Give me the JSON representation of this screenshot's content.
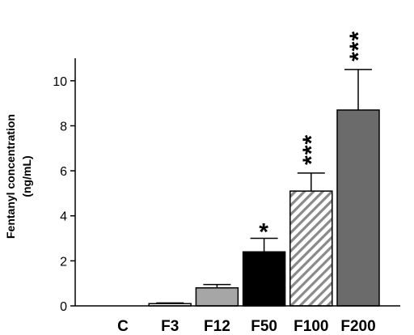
{
  "chart_data": {
    "type": "bar",
    "title": "",
    "xlabel": "",
    "ylabel": "Fentanyl concentration",
    "ylabel_unit": "(ng/mL)",
    "ylim": [
      0,
      11
    ],
    "yticks": [
      0,
      2,
      4,
      6,
      8,
      10
    ],
    "grid": false,
    "categories": [
      "C",
      "F3",
      "F12",
      "F50",
      "F100",
      "F200"
    ],
    "values": [
      0,
      0.1,
      0.8,
      2.4,
      5.1,
      8.7
    ],
    "errors": [
      0,
      0.03,
      0.15,
      0.6,
      0.8,
      1.8
    ],
    "significance": [
      "",
      "",
      "",
      "*",
      "***",
      "***"
    ],
    "bar_fills": [
      "none",
      "#ffffff",
      "#a6a6a6",
      "#000000",
      "hatched",
      "#6b6b6b"
    ]
  }
}
